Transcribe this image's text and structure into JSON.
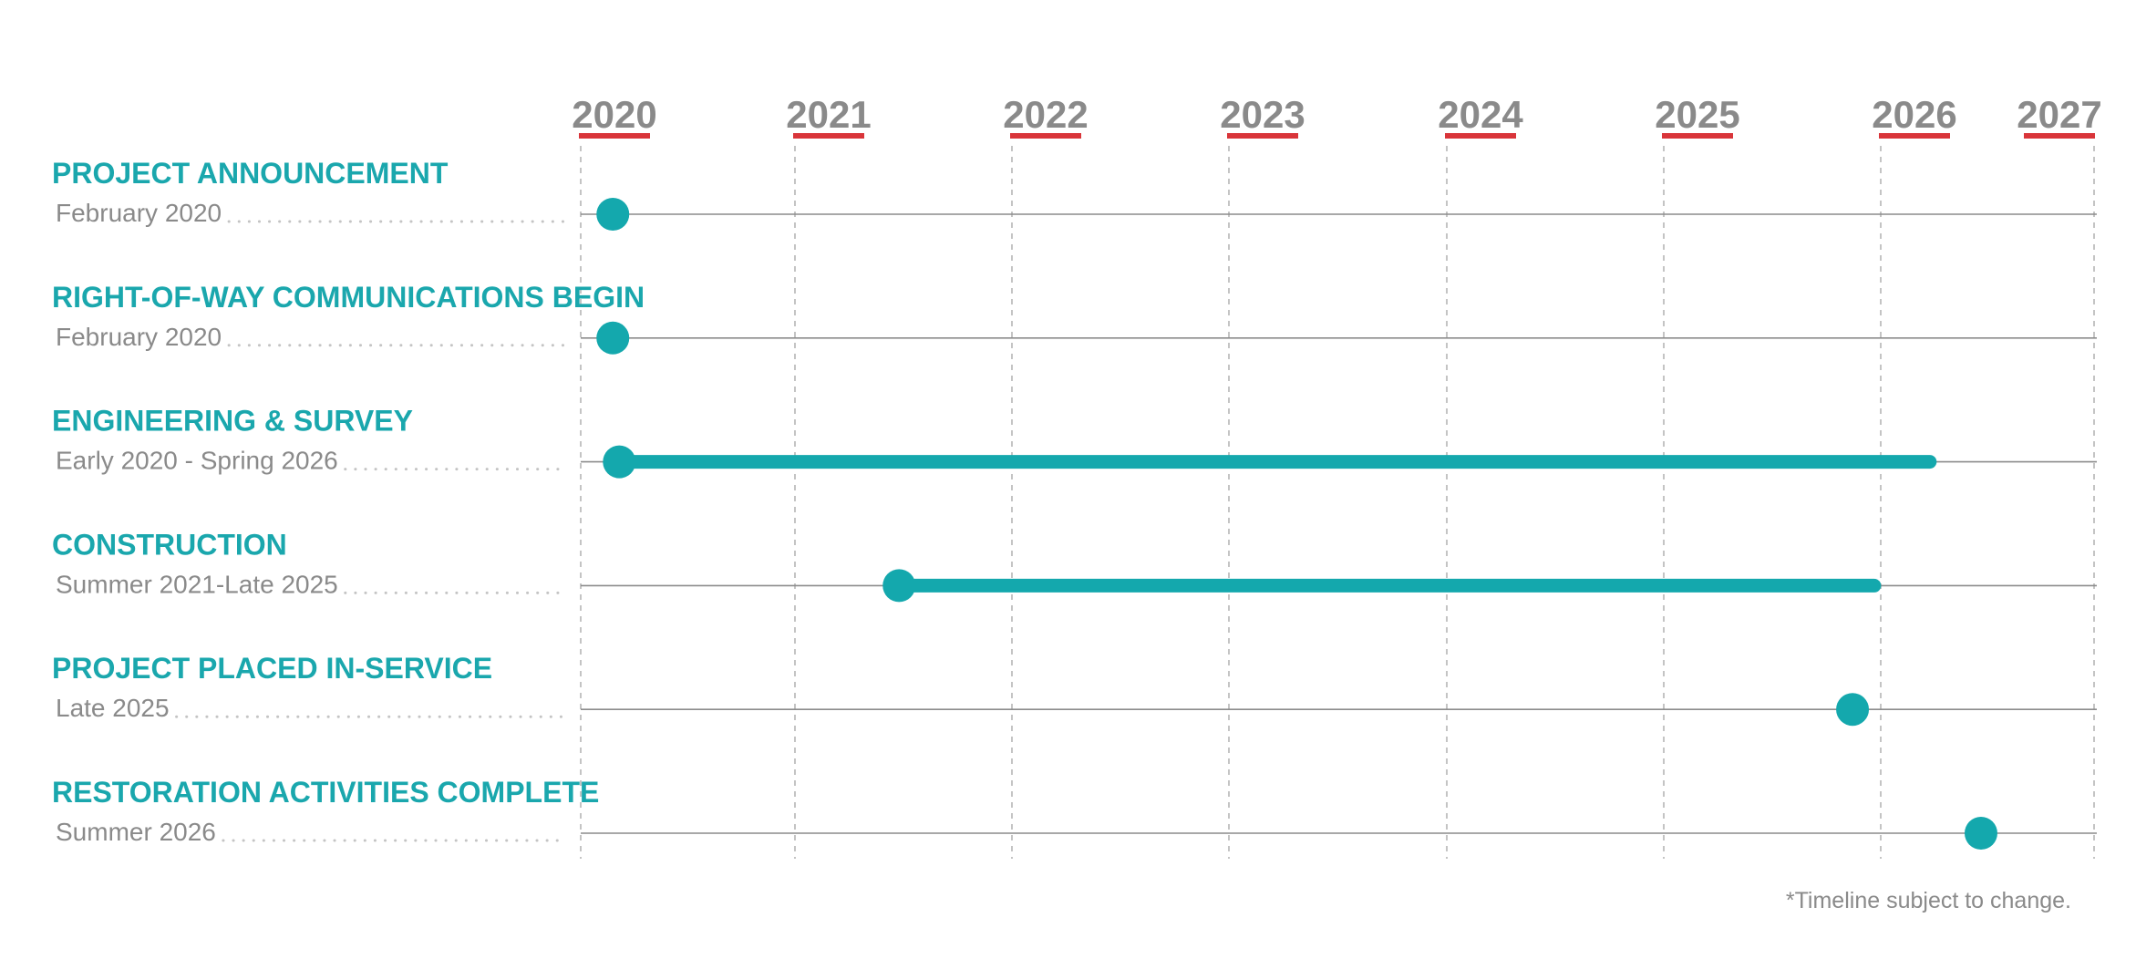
{
  "chart_data": {
    "type": "gantt",
    "x_axis": {
      "range": [
        2020.0,
        2027.0
      ],
      "ticks": [
        "2020",
        "2021",
        "2022",
        "2023",
        "2024",
        "2025",
        "2026",
        "2027"
      ],
      "grid": true
    },
    "tasks": [
      {
        "title": "PROJECT ANNOUNCEMENT",
        "date_text": "February 2020",
        "kind": "milestone",
        "start": 2020.15
      },
      {
        "title": "RIGHT-OF-WAY COMMUNICATIONS BEGIN",
        "date_text": "February 2020",
        "kind": "milestone",
        "start": 2020.15
      },
      {
        "title": "ENGINEERING & SURVEY",
        "date_text": "Early 2020 - Spring 2026",
        "kind": "range",
        "start": 2020.18,
        "end": 2026.23
      },
      {
        "title": "CONSTRUCTION",
        "date_text": "Summer 2021-Late 2025",
        "kind": "range",
        "start": 2021.48,
        "end": 2025.97
      },
      {
        "title": "PROJECT PLACED IN-SERVICE",
        "date_text": "Late 2025",
        "kind": "milestone",
        "start": 2025.87
      },
      {
        "title": "RESTORATION ACTIVITIES COMPLETE",
        "date_text": "Summer 2026",
        "kind": "milestone",
        "start": 2026.47
      }
    ],
    "footnote": "*Timeline subject to change."
  },
  "colors": {
    "accent_teal": "#14a8ad",
    "title_teal": "#1aa7ad",
    "year_underline_red": "#d9353a",
    "text_gray": "#8a8a8a",
    "row_line": "#8c8c8c",
    "grid_line": "#b5b5b5",
    "leader_dots": "#c4c4c4"
  }
}
